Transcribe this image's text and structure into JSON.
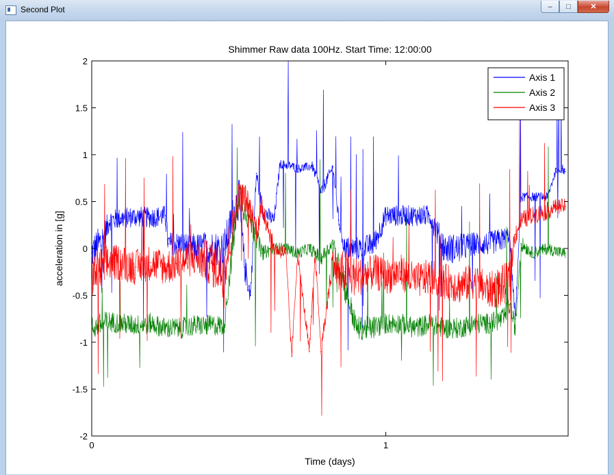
{
  "window": {
    "title": "Second Plot",
    "controls": {
      "minimize": "–",
      "maximize": "□",
      "close": "✕"
    }
  },
  "chart_data": {
    "type": "line",
    "title": "Shimmer Raw data 100Hz. Start Time: 12:00:00",
    "xlabel": "Time (days)",
    "ylabel": "acceleration in [g]",
    "xlim": [
      0,
      1.62
    ],
    "ylim": [
      -2,
      2
    ],
    "xticks": [
      0,
      1
    ],
    "yticks": [
      -2,
      -1.5,
      -1,
      -0.5,
      0,
      0.5,
      1,
      1.5,
      2
    ],
    "legend_position": "top-right",
    "series": [
      {
        "name": "Axis 1",
        "color": "#0000ff",
        "x": [
          0.0,
          0.04,
          0.06,
          0.1,
          0.15,
          0.2,
          0.25,
          0.26,
          0.3,
          0.35,
          0.4,
          0.45,
          0.5,
          0.52,
          0.54,
          0.56,
          0.58,
          0.62,
          0.64,
          0.68,
          0.7,
          0.75,
          0.78,
          0.82,
          0.84,
          0.86,
          0.88,
          0.92,
          0.96,
          1.0,
          1.05,
          1.1,
          1.15,
          1.2,
          1.25,
          1.3,
          1.35,
          1.4,
          1.42,
          1.44,
          1.46,
          1.5,
          1.55,
          1.58,
          1.6,
          1.61
        ],
        "y": [
          -0.05,
          0.1,
          0.3,
          0.32,
          0.34,
          0.33,
          0.35,
          0.05,
          0.05,
          0.0,
          0.0,
          0.0,
          0.55,
          -0.2,
          -0.5,
          0.8,
          0.4,
          0.3,
          0.9,
          0.88,
          0.85,
          0.88,
          0.6,
          0.87,
          0.3,
          0.0,
          0.0,
          0.0,
          0.05,
          0.35,
          0.35,
          0.35,
          0.35,
          0.0,
          0.0,
          0.05,
          0.05,
          0.1,
          0.15,
          -0.75,
          0.55,
          0.55,
          0.55,
          0.85,
          0.85,
          0.82
        ],
        "spread": [
          0.12,
          0.12,
          0.07,
          0.07,
          0.07,
          0.07,
          0.07,
          0.08,
          0.08,
          0.1,
          0.12,
          0.12,
          0.15,
          0.1,
          0.06,
          0.05,
          0.06,
          0.05,
          0.03,
          0.03,
          0.03,
          0.03,
          0.05,
          0.03,
          0.05,
          0.08,
          0.08,
          0.08,
          0.08,
          0.07,
          0.07,
          0.07,
          0.07,
          0.1,
          0.1,
          0.08,
          0.08,
          0.08,
          0.05,
          0.04,
          0.03,
          0.03,
          0.03,
          0.03,
          0.03,
          0.03
        ]
      },
      {
        "name": "Axis 2",
        "color": "#008000",
        "x": [
          0.0,
          0.04,
          0.06,
          0.1,
          0.15,
          0.2,
          0.25,
          0.3,
          0.35,
          0.4,
          0.45,
          0.5,
          0.54,
          0.58,
          0.62,
          0.66,
          0.7,
          0.74,
          0.78,
          0.82,
          0.86,
          0.9,
          0.95,
          1.0,
          1.05,
          1.1,
          1.15,
          1.2,
          1.25,
          1.3,
          1.35,
          1.4,
          1.42,
          1.44,
          1.46,
          1.5,
          1.55,
          1.6,
          1.61
        ],
        "y": [
          -0.85,
          -0.8,
          -0.78,
          -0.8,
          -0.82,
          -0.8,
          -0.85,
          -0.85,
          -0.82,
          -0.82,
          -0.82,
          0.6,
          0.3,
          -0.05,
          0.0,
          0.0,
          -0.05,
          0.0,
          -0.1,
          0.05,
          -0.4,
          -0.85,
          -0.85,
          -0.8,
          -0.8,
          -0.85,
          -0.8,
          -0.85,
          -0.85,
          -0.8,
          -0.8,
          -0.75,
          -0.6,
          -0.85,
          0.05,
          -0.05,
          0.0,
          -0.05,
          -0.05
        ],
        "spread": [
          0.08,
          0.08,
          0.07,
          0.07,
          0.07,
          0.07,
          0.07,
          0.07,
          0.07,
          0.07,
          0.07,
          0.12,
          0.1,
          0.05,
          0.04,
          0.04,
          0.04,
          0.04,
          0.05,
          0.05,
          0.1,
          0.08,
          0.08,
          0.07,
          0.07,
          0.07,
          0.07,
          0.07,
          0.07,
          0.07,
          0.07,
          0.07,
          0.07,
          0.06,
          0.05,
          0.04,
          0.04,
          0.04,
          0.04
        ]
      },
      {
        "name": "Axis 3",
        "color": "#ff0000",
        "x": [
          0.0,
          0.04,
          0.06,
          0.1,
          0.15,
          0.2,
          0.25,
          0.3,
          0.35,
          0.4,
          0.45,
          0.5,
          0.52,
          0.54,
          0.56,
          0.58,
          0.62,
          0.66,
          0.68,
          0.7,
          0.74,
          0.76,
          0.78,
          0.82,
          0.84,
          0.86,
          0.88,
          0.92,
          0.96,
          1.0,
          1.05,
          1.1,
          1.15,
          1.2,
          1.25,
          1.3,
          1.35,
          1.4,
          1.42,
          1.44,
          1.46,
          1.5,
          1.55,
          1.58,
          1.6,
          1.61
        ],
        "y": [
          -0.3,
          -0.2,
          -0.15,
          -0.15,
          -0.2,
          -0.15,
          -0.2,
          -0.15,
          -0.1,
          -0.15,
          -0.25,
          0.55,
          0.55,
          0.4,
          0.2,
          0.45,
          0.0,
          -0.05,
          -1.15,
          -0.05,
          -1.1,
          -0.05,
          -1.1,
          -0.1,
          -0.3,
          -0.25,
          -0.3,
          -0.3,
          -0.25,
          -0.3,
          -0.25,
          -0.35,
          -0.3,
          -0.35,
          -0.4,
          -0.35,
          -0.45,
          -0.4,
          -0.3,
          0.15,
          0.3,
          0.35,
          0.4,
          0.45,
          0.45,
          0.45
        ],
        "spread": [
          0.15,
          0.15,
          0.12,
          0.12,
          0.12,
          0.12,
          0.12,
          0.12,
          0.12,
          0.15,
          0.18,
          0.1,
          0.1,
          0.1,
          0.1,
          0.1,
          0.05,
          0.05,
          0.04,
          0.04,
          0.04,
          0.04,
          0.04,
          0.1,
          0.15,
          0.15,
          0.15,
          0.12,
          0.12,
          0.12,
          0.12,
          0.12,
          0.12,
          0.12,
          0.12,
          0.12,
          0.12,
          0.15,
          0.1,
          0.08,
          0.06,
          0.06,
          0.06,
          0.05,
          0.05,
          0.05
        ]
      }
    ]
  }
}
